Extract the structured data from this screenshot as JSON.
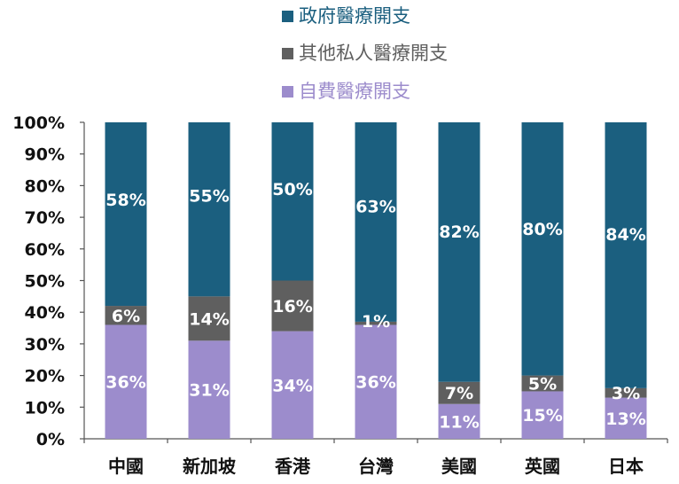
{
  "chart_data": {
    "type": "bar",
    "stacked": true,
    "percent": true,
    "categories": [
      "中國",
      "新加坡",
      "香港",
      "台灣",
      "美國",
      "英國",
      "日本"
    ],
    "series": [
      {
        "name": "自費醫療開支",
        "color": "#9c8ccc",
        "text_color": "#ffffff",
        "values": [
          36,
          31,
          34,
          36,
          11,
          15,
          13
        ],
        "labels": [
          "36%",
          "31%",
          "34%",
          "36%",
          "11%",
          "15%",
          "13%"
        ]
      },
      {
        "name": "其他私人醫療開支",
        "color": "#5f5f5f",
        "text_color": "#ffffff",
        "values": [
          6,
          14,
          16,
          1,
          7,
          5,
          3
        ],
        "labels": [
          "6%",
          "14%",
          "16%",
          "1%",
          "7%",
          "5%",
          "3%"
        ]
      },
      {
        "name": "政府醫療開支",
        "color": "#1b5f7f",
        "text_color": "#ffffff",
        "values": [
          58,
          55,
          50,
          63,
          82,
          80,
          84
        ],
        "labels": [
          "58%",
          "55%",
          "50%",
          "63%",
          "82%",
          "80%",
          "84%"
        ]
      }
    ],
    "legend_order": [
      2,
      1,
      0
    ],
    "legend_text_colors": [
      "#1b5f7f",
      "#5f5f5f",
      "#9c8ccc"
    ],
    "ylim": [
      0,
      100
    ],
    "yticks": [
      0,
      10,
      20,
      30,
      40,
      50,
      60,
      70,
      80,
      90,
      100
    ],
    "ytick_labels": [
      "0%",
      "10%",
      "20%",
      "30%",
      "40%",
      "50%",
      "60%",
      "70%",
      "80%",
      "90%",
      "100%"
    ],
    "grid": false,
    "legend_position": "top"
  }
}
